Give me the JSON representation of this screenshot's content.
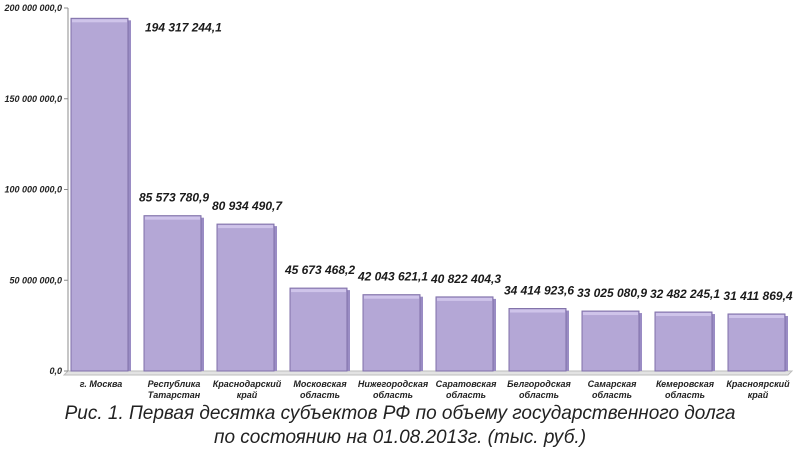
{
  "chart_data": {
    "type": "bar",
    "title": "",
    "xlabel": "",
    "ylabel": "",
    "ylim": [
      0,
      200000000
    ],
    "y_ticks": [
      "0,0",
      "50 000 000,0",
      "100 000 000,0",
      "150 000 000,0",
      "200 000 000,0"
    ],
    "y_tick_values": [
      0,
      50000000,
      100000000,
      150000000,
      200000000
    ],
    "grid": false,
    "legend": "none",
    "categories": [
      [
        "г. Москва"
      ],
      [
        "Республика",
        "Татарстан"
      ],
      [
        "Краснодарский",
        "край"
      ],
      [
        "Московская",
        "область"
      ],
      [
        "Нижегородская",
        "область"
      ],
      [
        "Саратовская",
        "область"
      ],
      [
        "Белгородская",
        "область"
      ],
      [
        "Самарская",
        "область"
      ],
      [
        "Кемеровская",
        "область"
      ],
      [
        "Красноярский",
        "край"
      ]
    ],
    "values": [
      194317244.1,
      85573780.9,
      80934490.7,
      45673468.2,
      42043621.1,
      40822404.3,
      34414923.6,
      33025080.9,
      32482245.1,
      31411869.4
    ],
    "value_labels": [
      "194 317 244,1",
      "85 573 780,9",
      "80 934 490,7",
      "45 673 468,2",
      "42 043 621,1",
      "40 822 404,3",
      "34 414 923,6",
      "33 025 080,9",
      "32 482 245,1",
      "31 411 869,4"
    ],
    "colors": {
      "bar_fill": "#b4a7d6",
      "bar_edge": "#7f6fa8",
      "bar_top": "#cfc4ea",
      "axis": "#8c8c8c",
      "floor": "#bdbdbd"
    }
  },
  "caption": {
    "line1": "Рис. 1. Первая десятка субъектов РФ по объему государственного долга",
    "line2": "по состоянию на 01.08.2013г. (тыс. руб.)"
  }
}
